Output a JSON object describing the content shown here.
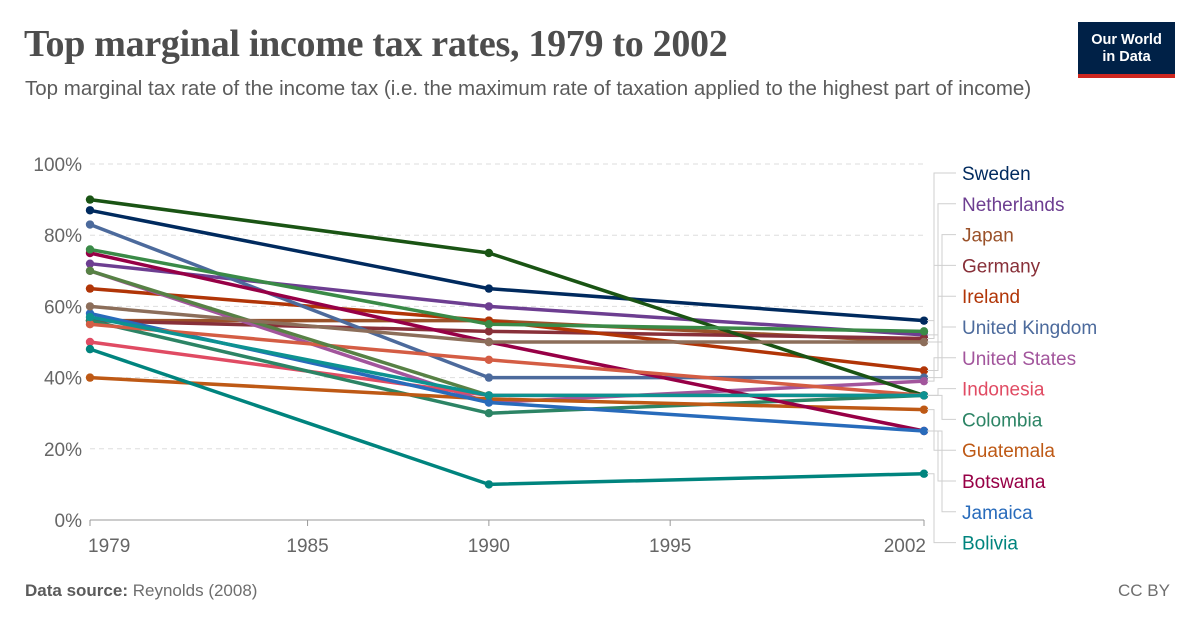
{
  "title": "Top marginal income tax rates, 1979 to 2002",
  "subtitle": "Top marginal tax rate of the income tax (i.e. the maximum rate of taxation applied to the highest part of income)",
  "logo": {
    "line1": "Our World",
    "line2": "in Data",
    "bg_color": "#002147",
    "accent_color": "#ce261e"
  },
  "footer": {
    "source_label": "Data source:",
    "source_text": "Reynolds (2008)",
    "license": "CC BY"
  },
  "chart_data": {
    "type": "line",
    "title": "Top marginal income tax rates, 1979 to 2002",
    "xlabel": "",
    "ylabel": "",
    "x": [
      1979,
      1990,
      2002
    ],
    "xlim": [
      1979,
      2002
    ],
    "ylim": [
      0,
      100
    ],
    "x_ticks": [
      1979,
      1985,
      1990,
      1995,
      2002
    ],
    "x_tick_labels": [
      "1979",
      "1985",
      "1990",
      "1995",
      "2002"
    ],
    "y_ticks": [
      0,
      20,
      40,
      60,
      80,
      100
    ],
    "y_tick_labels": [
      "0%",
      "20%",
      "40%",
      "60%",
      "80%",
      "100%"
    ],
    "grid": "horizontal dashed",
    "legend": "right",
    "series": [
      {
        "name": "Sweden",
        "color": "#002a5e",
        "values": [
          87,
          65,
          56
        ]
      },
      {
        "name": "Netherlands",
        "color": "#6d3e91",
        "values": [
          72,
          60,
          52
        ]
      },
      {
        "name": "Japan",
        "color": "#9a5129",
        "values": [
          56,
          56,
          50
        ]
      },
      {
        "name": "Germany",
        "color": "#883039",
        "values": [
          56,
          53,
          51
        ]
      },
      {
        "name": "Ireland",
        "color": "#b13507",
        "values": [
          65,
          56,
          42
        ]
      },
      {
        "name": "United Kingdom",
        "color": "#4c6a9c",
        "values": [
          83,
          40,
          40
        ]
      },
      {
        "name": "United States",
        "color": "#a2559c",
        "values": [
          70,
          33,
          39
        ]
      },
      {
        "name": "Indonesia",
        "color": "#e04b63",
        "values": [
          50,
          35,
          35
        ]
      },
      {
        "name": "Colombia",
        "color": "#2c8465",
        "values": [
          56,
          30,
          35
        ]
      },
      {
        "name": "Guatemala",
        "color": "#be5915",
        "values": [
          40,
          34,
          31
        ]
      },
      {
        "name": "Botswana",
        "color": "#970046",
        "values": [
          75,
          50,
          25
        ]
      },
      {
        "name": "Jamaica",
        "color": "#286bbb",
        "values": [
          58,
          33,
          25
        ]
      },
      {
        "name": "Bolivia",
        "color": "#00847e",
        "values": [
          48,
          10,
          13
        ]
      },
      {
        "color": "#1a5414",
        "values": [
          90,
          75,
          35
        ]
      },
      {
        "color": "#3a8a47",
        "values": [
          76,
          55,
          53
        ]
      },
      {
        "color": "#d45d44",
        "values": [
          55,
          45,
          35
        ]
      },
      {
        "color": "#578145",
        "values": [
          70,
          35,
          null
        ]
      },
      {
        "color": "#0d9291",
        "values": [
          57,
          35,
          35
        ]
      },
      {
        "color": "#8c6e5a",
        "values": [
          60,
          50,
          50
        ]
      }
    ]
  }
}
